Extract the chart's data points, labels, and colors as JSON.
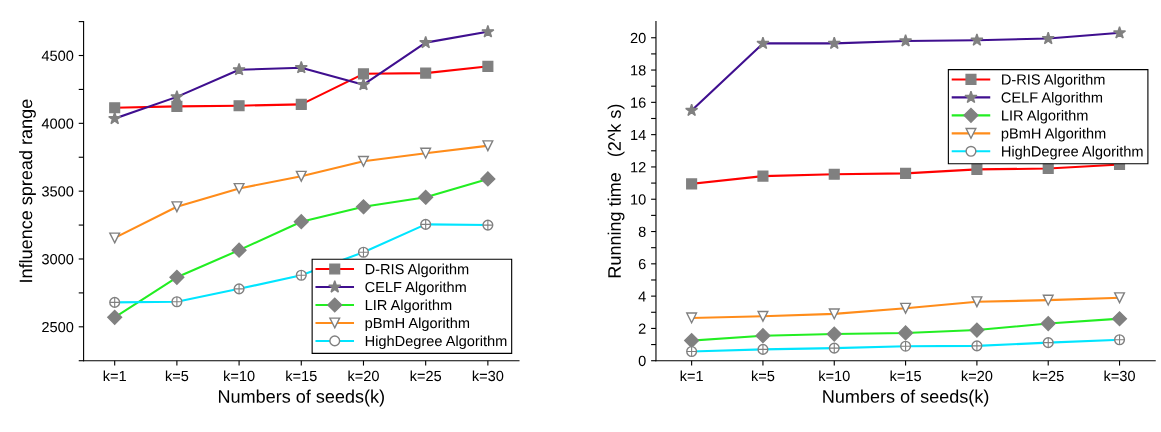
{
  "chart_data": [
    {
      "type": "line",
      "xlabel": "Numbers of seeds(k)",
      "ylabel": "Influence spread range",
      "categories": [
        "k=1",
        "k=5",
        "k=10",
        "k=15",
        "k=20",
        "k=25",
        "k=30"
      ],
      "ylim": [
        2250,
        4750
      ],
      "yticks": [
        {
          "value": 2250,
          "label": null
        },
        2500,
        {
          "value": 2750,
          "label": null
        },
        3000,
        {
          "value": 3250,
          "label": null
        },
        3500,
        {
          "value": 3750,
          "label": null
        },
        4000,
        {
          "value": 4250,
          "label": null
        },
        4500,
        {
          "value": 4750,
          "label": null
        }
      ],
      "legend": "lower right",
      "grid": false,
      "series": [
        {
          "name": "D-RIS Algorithm",
          "color": "#ff0000",
          "marker": "square",
          "values": [
            4115,
            4125,
            4130,
            4140,
            4365,
            4370,
            4420
          ]
        },
        {
          "name": "CELF Algorithm",
          "color": "#3f0f8f",
          "marker": "star",
          "values": [
            4035,
            4195,
            4395,
            4410,
            4285,
            4595,
            4675
          ]
        },
        {
          "name": "LIR Algorithm",
          "color": "#22ee22",
          "marker": "diamond",
          "values": [
            2570,
            2865,
            3065,
            3275,
            3385,
            3455,
            3590
          ]
        },
        {
          "name": "pBmH Algorithm",
          "color": "#ff8c1a",
          "marker": "triangle",
          "values": [
            3155,
            3385,
            3520,
            3610,
            3720,
            3780,
            3835
          ]
        },
        {
          "name": "HighDegree Algorithm",
          "color": "#00e5ff",
          "marker": "circle",
          "values": [
            2680,
            2685,
            2780,
            2880,
            3050,
            3255,
            3250
          ]
        }
      ]
    },
    {
      "type": "line",
      "xlabel": "Numbers of seeds(k)",
      "ylabel": "Running time   (2^k s)",
      "categories": [
        "k=1",
        "k=5",
        "k=10",
        "k=15",
        "k=20",
        "k=25",
        "k=30"
      ],
      "ylim": [
        0,
        21
      ],
      "yticks": [
        0,
        {
          "value": 1,
          "label": null
        },
        2,
        {
          "value": 3,
          "label": null
        },
        4,
        {
          "value": 5,
          "label": null
        },
        6,
        {
          "value": 7,
          "label": null
        },
        8,
        {
          "value": 9,
          "label": null
        },
        10,
        {
          "value": 11,
          "label": null
        },
        12,
        {
          "value": 13,
          "label": null
        },
        14,
        {
          "value": 15,
          "label": null
        },
        16,
        {
          "value": 17,
          "label": null
        },
        18,
        {
          "value": 19,
          "label": null
        },
        20
      ],
      "legend": "upper right",
      "grid": false,
      "series": [
        {
          "name": "D-RIS Algorithm",
          "color": "#ff0000",
          "marker": "square",
          "values": [
            10.95,
            11.43,
            11.55,
            11.6,
            11.85,
            11.9,
            12.15
          ]
        },
        {
          "name": "CELF Algorithm",
          "color": "#3f0f8f",
          "marker": "star",
          "values": [
            15.5,
            19.65,
            19.65,
            19.8,
            19.85,
            19.95,
            20.3
          ]
        },
        {
          "name": "LIR Algorithm",
          "color": "#22ee22",
          "marker": "diamond",
          "values": [
            1.25,
            1.55,
            1.65,
            1.72,
            1.9,
            2.3,
            2.6
          ]
        },
        {
          "name": "pBmH Algorithm",
          "color": "#ff8c1a",
          "marker": "triangle",
          "values": [
            2.65,
            2.75,
            2.9,
            3.25,
            3.65,
            3.75,
            3.9
          ]
        },
        {
          "name": "HighDegree Algorithm",
          "color": "#00e5ff",
          "marker": "circle",
          "values": [
            0.57,
            0.7,
            0.78,
            0.9,
            0.92,
            1.12,
            1.3
          ]
        }
      ]
    }
  ]
}
